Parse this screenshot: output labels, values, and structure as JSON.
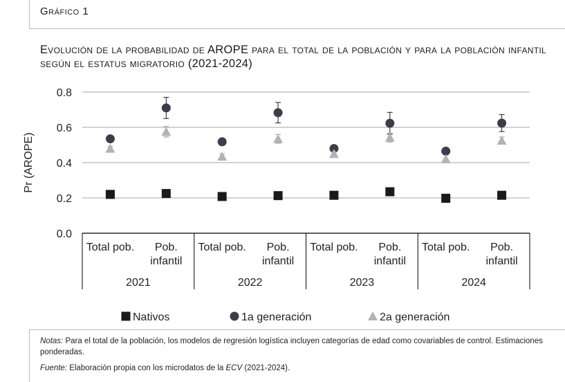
{
  "figure_label": "Gráfico 1",
  "title": "Evolución de la probabilidad de AROPE para el total de la población y para la población infantil según el estatus migratorio (2021-2024)",
  "notes": {
    "label": "Notas:",
    "text": " Para el total de la población, los modelos de regresión logística incluyen categorías de edad como covariables de control. Estimaciones ponderadas."
  },
  "source": {
    "label": "Fuente:",
    "text_before": " Elaboración propia con los microdatos de la ",
    "italic": "ECV",
    "text_after": " (2021-2024)."
  },
  "colors": {
    "nativos": "#1a1a1a",
    "primera": "#3d3d4a",
    "segunda": "#b3b3b3",
    "grid": "#a6a6a6",
    "axis": "#000000"
  },
  "chart_data": {
    "type": "scatter",
    "ylabel": "Pr (AROPE)",
    "ylim": [
      0.0,
      0.8
    ],
    "yticks": [
      "0.0",
      "0.2",
      "0.4",
      "0.6",
      "0.8"
    ],
    "ytick_values": [
      0.0,
      0.2,
      0.4,
      0.6,
      0.8
    ],
    "grid": true,
    "legend_position": "bottom",
    "years": [
      "2021",
      "2022",
      "2023",
      "2024"
    ],
    "categories": [
      "Total pob.",
      "Pob. infantil"
    ],
    "x_labels": [
      "Total pob.",
      "Pob.\ninfantil",
      "Total pob.",
      "Pob.\ninfantil",
      "Total pob.",
      "Pob.\ninfantil",
      "Total pob.",
      "Pob.\ninfantil"
    ],
    "series": [
      {
        "name": "Nativos",
        "marker": "square",
        "values": [
          0.22,
          0.225,
          0.208,
          0.213,
          0.215,
          0.235,
          0.198,
          0.215
        ],
        "err": [
          0.008,
          0.012,
          0.008,
          0.012,
          0.008,
          0.012,
          0.008,
          0.012
        ]
      },
      {
        "name": "1a generación",
        "marker": "circle",
        "values": [
          0.535,
          0.71,
          0.518,
          0.683,
          0.48,
          0.623,
          0.465,
          0.624
        ],
        "err": [
          0.015,
          0.06,
          0.015,
          0.058,
          0.015,
          0.062,
          0.015,
          0.048
        ]
      },
      {
        "name": "2a generación",
        "marker": "triangle",
        "values": [
          0.48,
          0.575,
          0.435,
          0.535,
          0.45,
          0.542,
          0.42,
          0.525
        ],
        "err": [
          0.012,
          0.03,
          0.015,
          0.025,
          0.012,
          0.025,
          0.01,
          0.02
        ]
      }
    ]
  }
}
